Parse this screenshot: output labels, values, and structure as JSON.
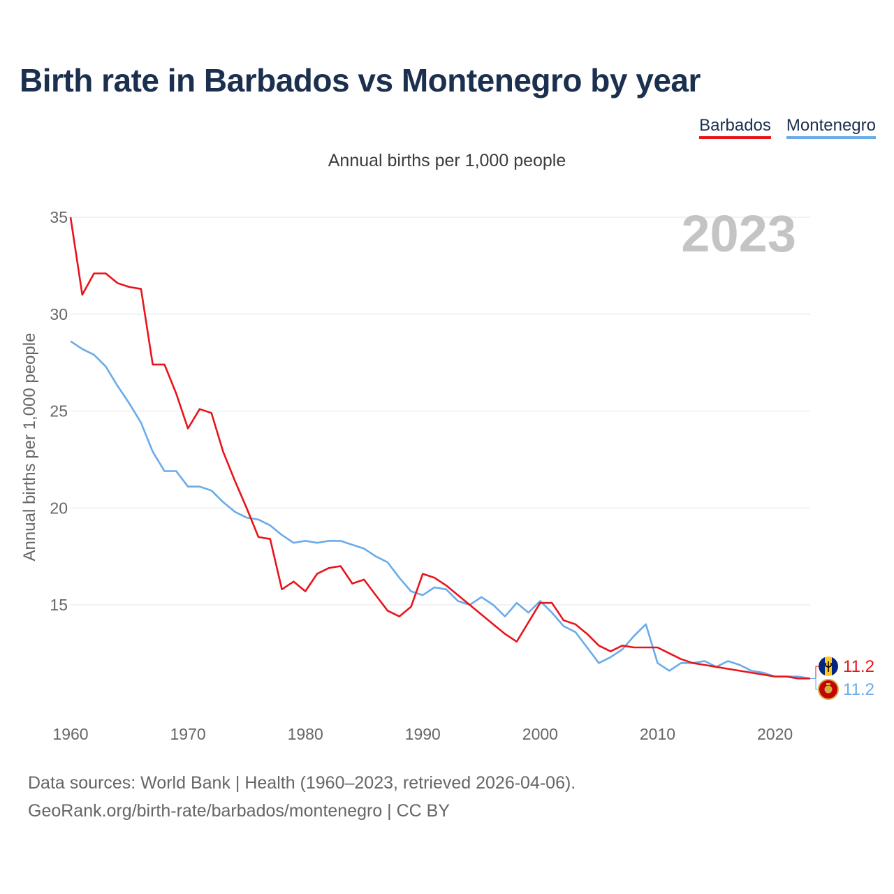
{
  "title": "Birth rate in Barbados vs Montenegro by year",
  "subtitle": "Annual births per 1,000 people",
  "legend": [
    {
      "name": "Barbados",
      "color": "#e8141b"
    },
    {
      "name": "Montenegro",
      "color": "#6aabe8"
    }
  ],
  "year_badge": "2023",
  "end_labels": {
    "barbados": "11.2",
    "montenegro": "11.2"
  },
  "flags": {
    "barbados": "barbados-flag-icon",
    "montenegro": "montenegro-flag-icon"
  },
  "sources": {
    "line1": "Data sources: World Bank | Health (1960–2023, retrieved 2026-04-06).",
    "line2": "GeoRank.org/birth-rate/barbados/montenegro | CC BY"
  },
  "chart_data": {
    "type": "line",
    "title": "Birth rate in Barbados vs Montenegro by year",
    "xlabel": "",
    "ylabel": "Annual births per 1,000 people",
    "xlim": [
      1960,
      2023
    ],
    "ylim": [
      10.5,
      35
    ],
    "x_ticks": [
      1960,
      1970,
      1980,
      1990,
      2000,
      2010,
      2020
    ],
    "y_ticks": [
      15,
      20,
      25,
      30,
      35
    ],
    "grid": true,
    "x": [
      1960,
      1961,
      1962,
      1963,
      1964,
      1965,
      1966,
      1967,
      1968,
      1969,
      1970,
      1971,
      1972,
      1973,
      1974,
      1975,
      1976,
      1977,
      1978,
      1979,
      1980,
      1981,
      1982,
      1983,
      1984,
      1985,
      1986,
      1987,
      1988,
      1989,
      1990,
      1991,
      1992,
      1993,
      1994,
      1995,
      1996,
      1997,
      1998,
      1999,
      2000,
      2001,
      2002,
      2003,
      2004,
      2005,
      2006,
      2007,
      2008,
      2009,
      2010,
      2011,
      2012,
      2013,
      2014,
      2015,
      2016,
      2017,
      2018,
      2019,
      2020,
      2021,
      2022,
      2023
    ],
    "series": [
      {
        "name": "Barbados",
        "color": "#e8141b",
        "values": [
          35.0,
          31.0,
          32.1,
          32.1,
          31.6,
          31.4,
          31.3,
          27.4,
          27.4,
          25.9,
          24.1,
          25.1,
          24.9,
          22.9,
          21.4,
          20.0,
          18.5,
          18.4,
          15.8,
          16.2,
          15.7,
          16.6,
          16.9,
          17.0,
          16.1,
          16.3,
          15.5,
          14.7,
          14.4,
          14.9,
          16.6,
          16.4,
          16.0,
          15.5,
          15.0,
          14.5,
          14.0,
          13.5,
          13.1,
          14.1,
          15.1,
          15.1,
          14.2,
          14.0,
          13.5,
          12.9,
          12.6,
          12.9,
          12.8,
          12.8,
          12.8,
          12.5,
          12.2,
          12.0,
          11.9,
          11.8,
          11.7,
          11.6,
          11.5,
          11.4,
          11.3,
          11.3,
          11.2,
          11.2
        ]
      },
      {
        "name": "Montenegro",
        "color": "#6aabe8",
        "values": [
          28.6,
          28.2,
          27.9,
          27.3,
          26.3,
          25.4,
          24.4,
          22.9,
          21.9,
          21.9,
          21.1,
          21.1,
          20.9,
          20.3,
          19.8,
          19.5,
          19.4,
          19.1,
          18.6,
          18.2,
          18.3,
          18.2,
          18.3,
          18.3,
          18.1,
          17.9,
          17.5,
          17.2,
          16.4,
          15.7,
          15.5,
          15.9,
          15.8,
          15.2,
          15.0,
          15.4,
          15.0,
          14.4,
          15.1,
          14.6,
          15.2,
          14.6,
          13.9,
          13.6,
          12.8,
          12.0,
          12.3,
          12.7,
          13.4,
          14.0,
          12.0,
          11.6,
          12.0,
          12.0,
          12.1,
          11.8,
          12.1,
          11.9,
          11.6,
          11.5,
          11.3,
          11.3,
          11.3,
          11.2
        ]
      }
    ]
  }
}
